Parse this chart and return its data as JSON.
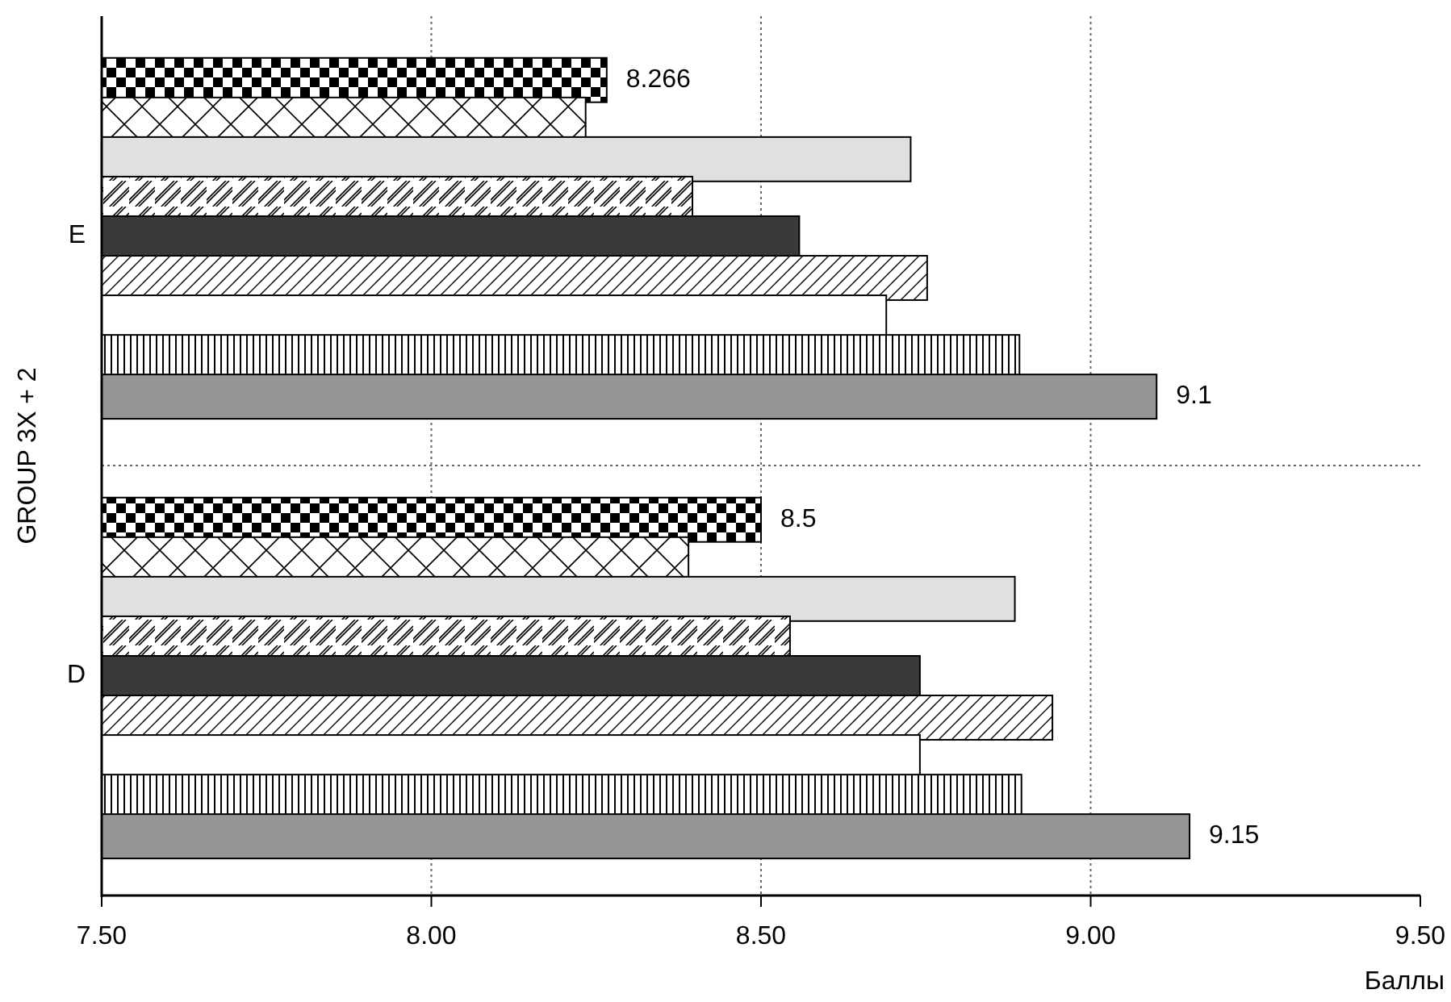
{
  "chart_data": {
    "type": "bar",
    "orientation": "horizontal",
    "ylabel": "GROUP 3X + 2",
    "xlabel": "Баллы",
    "categories": [
      "E",
      "D"
    ],
    "xlim": [
      7.5,
      9.5
    ],
    "xticks": [
      {
        "value": 7.5,
        "label": "7.50"
      },
      {
        "value": 8,
        "label": "8.00"
      },
      {
        "value": 8.5,
        "label": "8.50"
      },
      {
        "value": 9,
        "label": "9.00"
      },
      {
        "value": 9.5,
        "label": "9.50"
      }
    ],
    "grid": "x",
    "series": [
      {
        "color": "#000000",
        "values": [
          8.266,
          8.5
        ],
        "value_labels": [
          "8.266",
          "8.5"
        ]
      },
      {
        "color": "#000000",
        "values": [
          8.234,
          8.39
        ]
      },
      {
        "color": "#e0e0e0",
        "values": [
          8.727,
          8.885
        ]
      },
      {
        "color": "#000000",
        "values": [
          8.396,
          8.544
        ]
      },
      {
        "color": "#3a3a3a",
        "values": [
          8.558,
          8.741
        ]
      },
      {
        "color": "#000000",
        "values": [
          8.752,
          8.942
        ]
      },
      {
        "color": "#ffffff",
        "values": [
          8.69,
          8.741
        ]
      },
      {
        "color": "#000000",
        "values": [
          8.892,
          8.895
        ]
      },
      {
        "color": "#969696",
        "values": [
          9.1,
          9.15
        ],
        "value_labels": [
          "9.1",
          "9.15"
        ]
      }
    ]
  }
}
